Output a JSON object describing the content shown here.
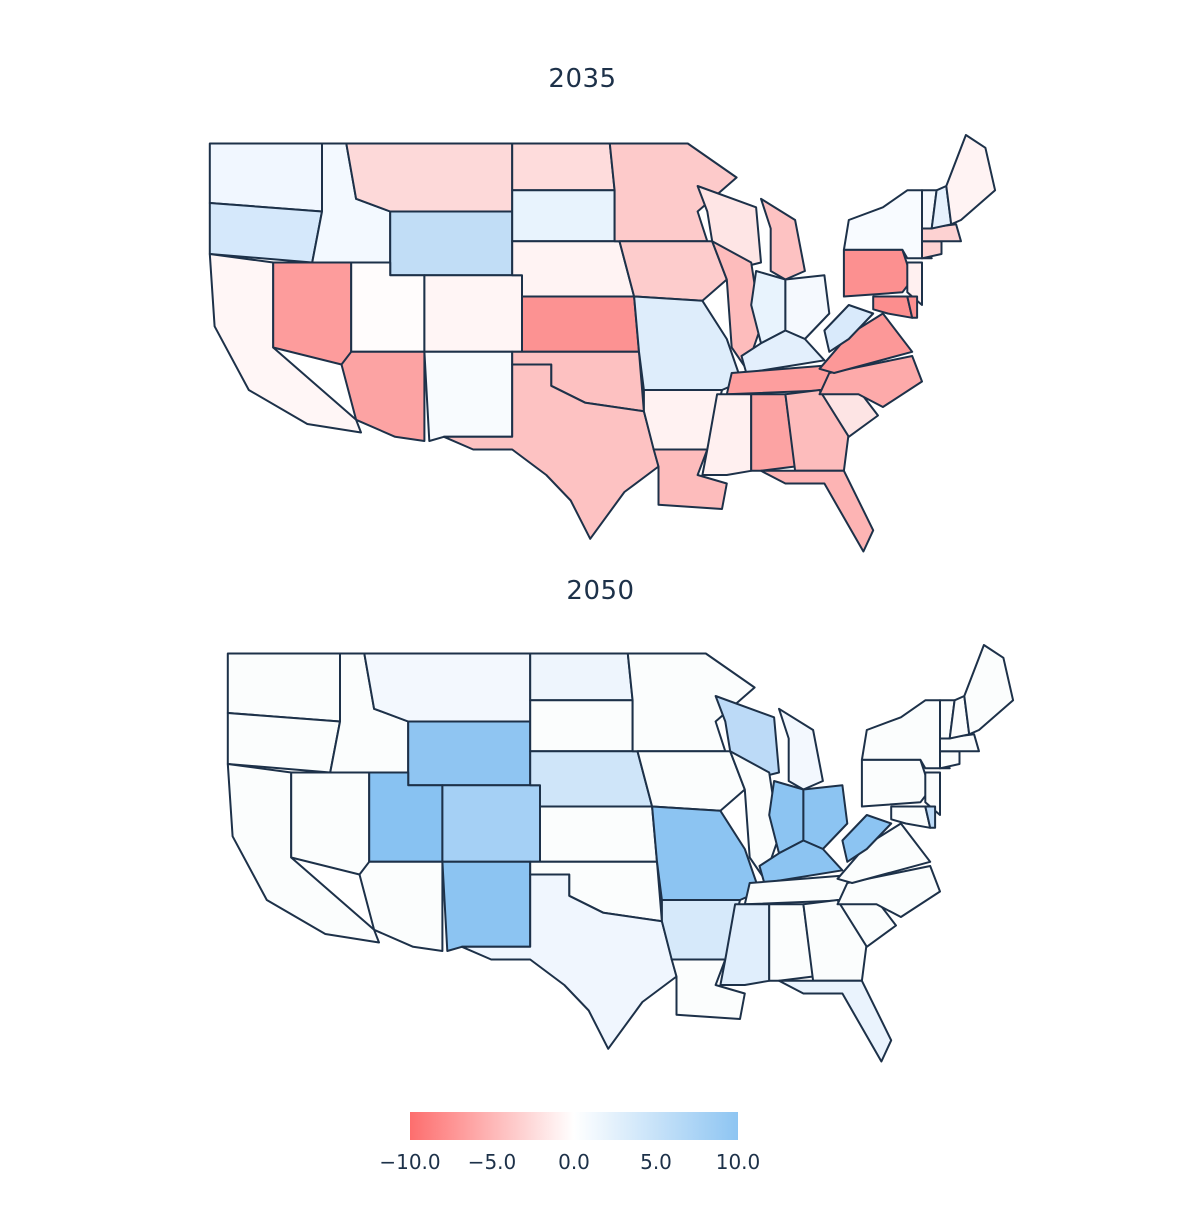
{
  "chart_data": [
    {
      "type": "heatmap",
      "title": "2035",
      "colors": {
        "WA": "#f1f7ff",
        "OR": "#d5e8fb",
        "CA": "#fff6f6",
        "ID": "#f3f9ff",
        "NV": "#fd9c9c",
        "MT": "#fdd9d9",
        "WY": "#c1ddf6",
        "UT": "#fffcfc",
        "AZ": "#fca3a3",
        "CO": "#fff5f5",
        "NM": "#f8fbfe",
        "ND": "#fedcdc",
        "SD": "#e8f3fd",
        "NE": "#fff3f3",
        "KS": "#fc9292",
        "OK": "#fdc1c1",
        "TX": "#fdc2c2",
        "MN": "#fdcaca",
        "IA": "#fdcccc",
        "MO": "#deedfb",
        "AR": "#fff2f2",
        "LA": "#fdbcbc",
        "WI": "#fee5e5",
        "IL": "#fdbcbc",
        "MI": "#fdc2c2",
        "IN": "#e8f3fd",
        "OH": "#f5f9fe",
        "KY": "#e3effc",
        "TN": "#fd9e9e",
        "MS": "#fff0f0",
        "AL": "#fca3a3",
        "GA": "#fdbcbc",
        "FL": "#fdb4b4",
        "SC": "#fde4e4",
        "NC": "#fdaaaa",
        "VA": "#fc9898",
        "WV": "#d9eafb",
        "PA": "#fc9090",
        "NY": "#f8fbff",
        "VT": "#f5f9fe",
        "NH": "#e6f1fd",
        "ME": "#fff3f3",
        "MA": "#fdd2d2",
        "CT": "#fdd2d2",
        "NJ": "#fff0f0",
        "MD": "#fc8e8e",
        "DE": "#fc9090"
      }
    },
    {
      "type": "heatmap",
      "title": "2050",
      "colors": {
        "WA": "#fbfdfd",
        "OR": "#fbfdfd",
        "CA": "#fbfdfd",
        "ID": "#fbfdfd",
        "NV": "#fbfdfd",
        "MT": "#f3f8fe",
        "WY": "#8fc5f2",
        "UT": "#88c2f2",
        "AZ": "#fbfdfd",
        "CO": "#a5d0f5",
        "NM": "#8cc4f2",
        "ND": "#eef5fd",
        "SD": "#fbfdfd",
        "NE": "#cfe5f9",
        "KS": "#fbfdfd",
        "OK": "#fbfdfd",
        "TX": "#f0f6fe",
        "MN": "#fbfdfd",
        "IA": "#fbfdfd",
        "MO": "#8cc4f2",
        "AR": "#d6e9fa",
        "LA": "#fbfdfd",
        "WI": "#bcdaf7",
        "IL": "#fbfdfd",
        "MI": "#f3f8fe",
        "IN": "#8cc4f2",
        "OH": "#8cc4f2",
        "KY": "#8cc4f2",
        "TN": "#fbfdfd",
        "MS": "#e0eefc",
        "AL": "#fbfdfd",
        "GA": "#fbfdfd",
        "FL": "#eaf3fd",
        "SC": "#fbfdfd",
        "NC": "#fbfdfd",
        "VA": "#fbfdfd",
        "WV": "#8cc4f2",
        "PA": "#fbfdfd",
        "NY": "#fbfdfd",
        "VT": "#fbfdfd",
        "NH": "#fbfdfd",
        "ME": "#fbfdfd",
        "MA": "#fbfdfd",
        "CT": "#fbfdfd",
        "NJ": "#fbfdfd",
        "MD": "#fbfdfd",
        "DE": "#bcdaf7"
      }
    }
  ],
  "colorbar": {
    "min": -10.0,
    "max": 10.0,
    "color_low": "#fd6e6e",
    "color_mid": "#ffffff",
    "color_high": "#8ec5f2",
    "ticks": [
      "−10.0",
      "−5.0",
      "0.0",
      "5.0",
      "10.0"
    ]
  }
}
